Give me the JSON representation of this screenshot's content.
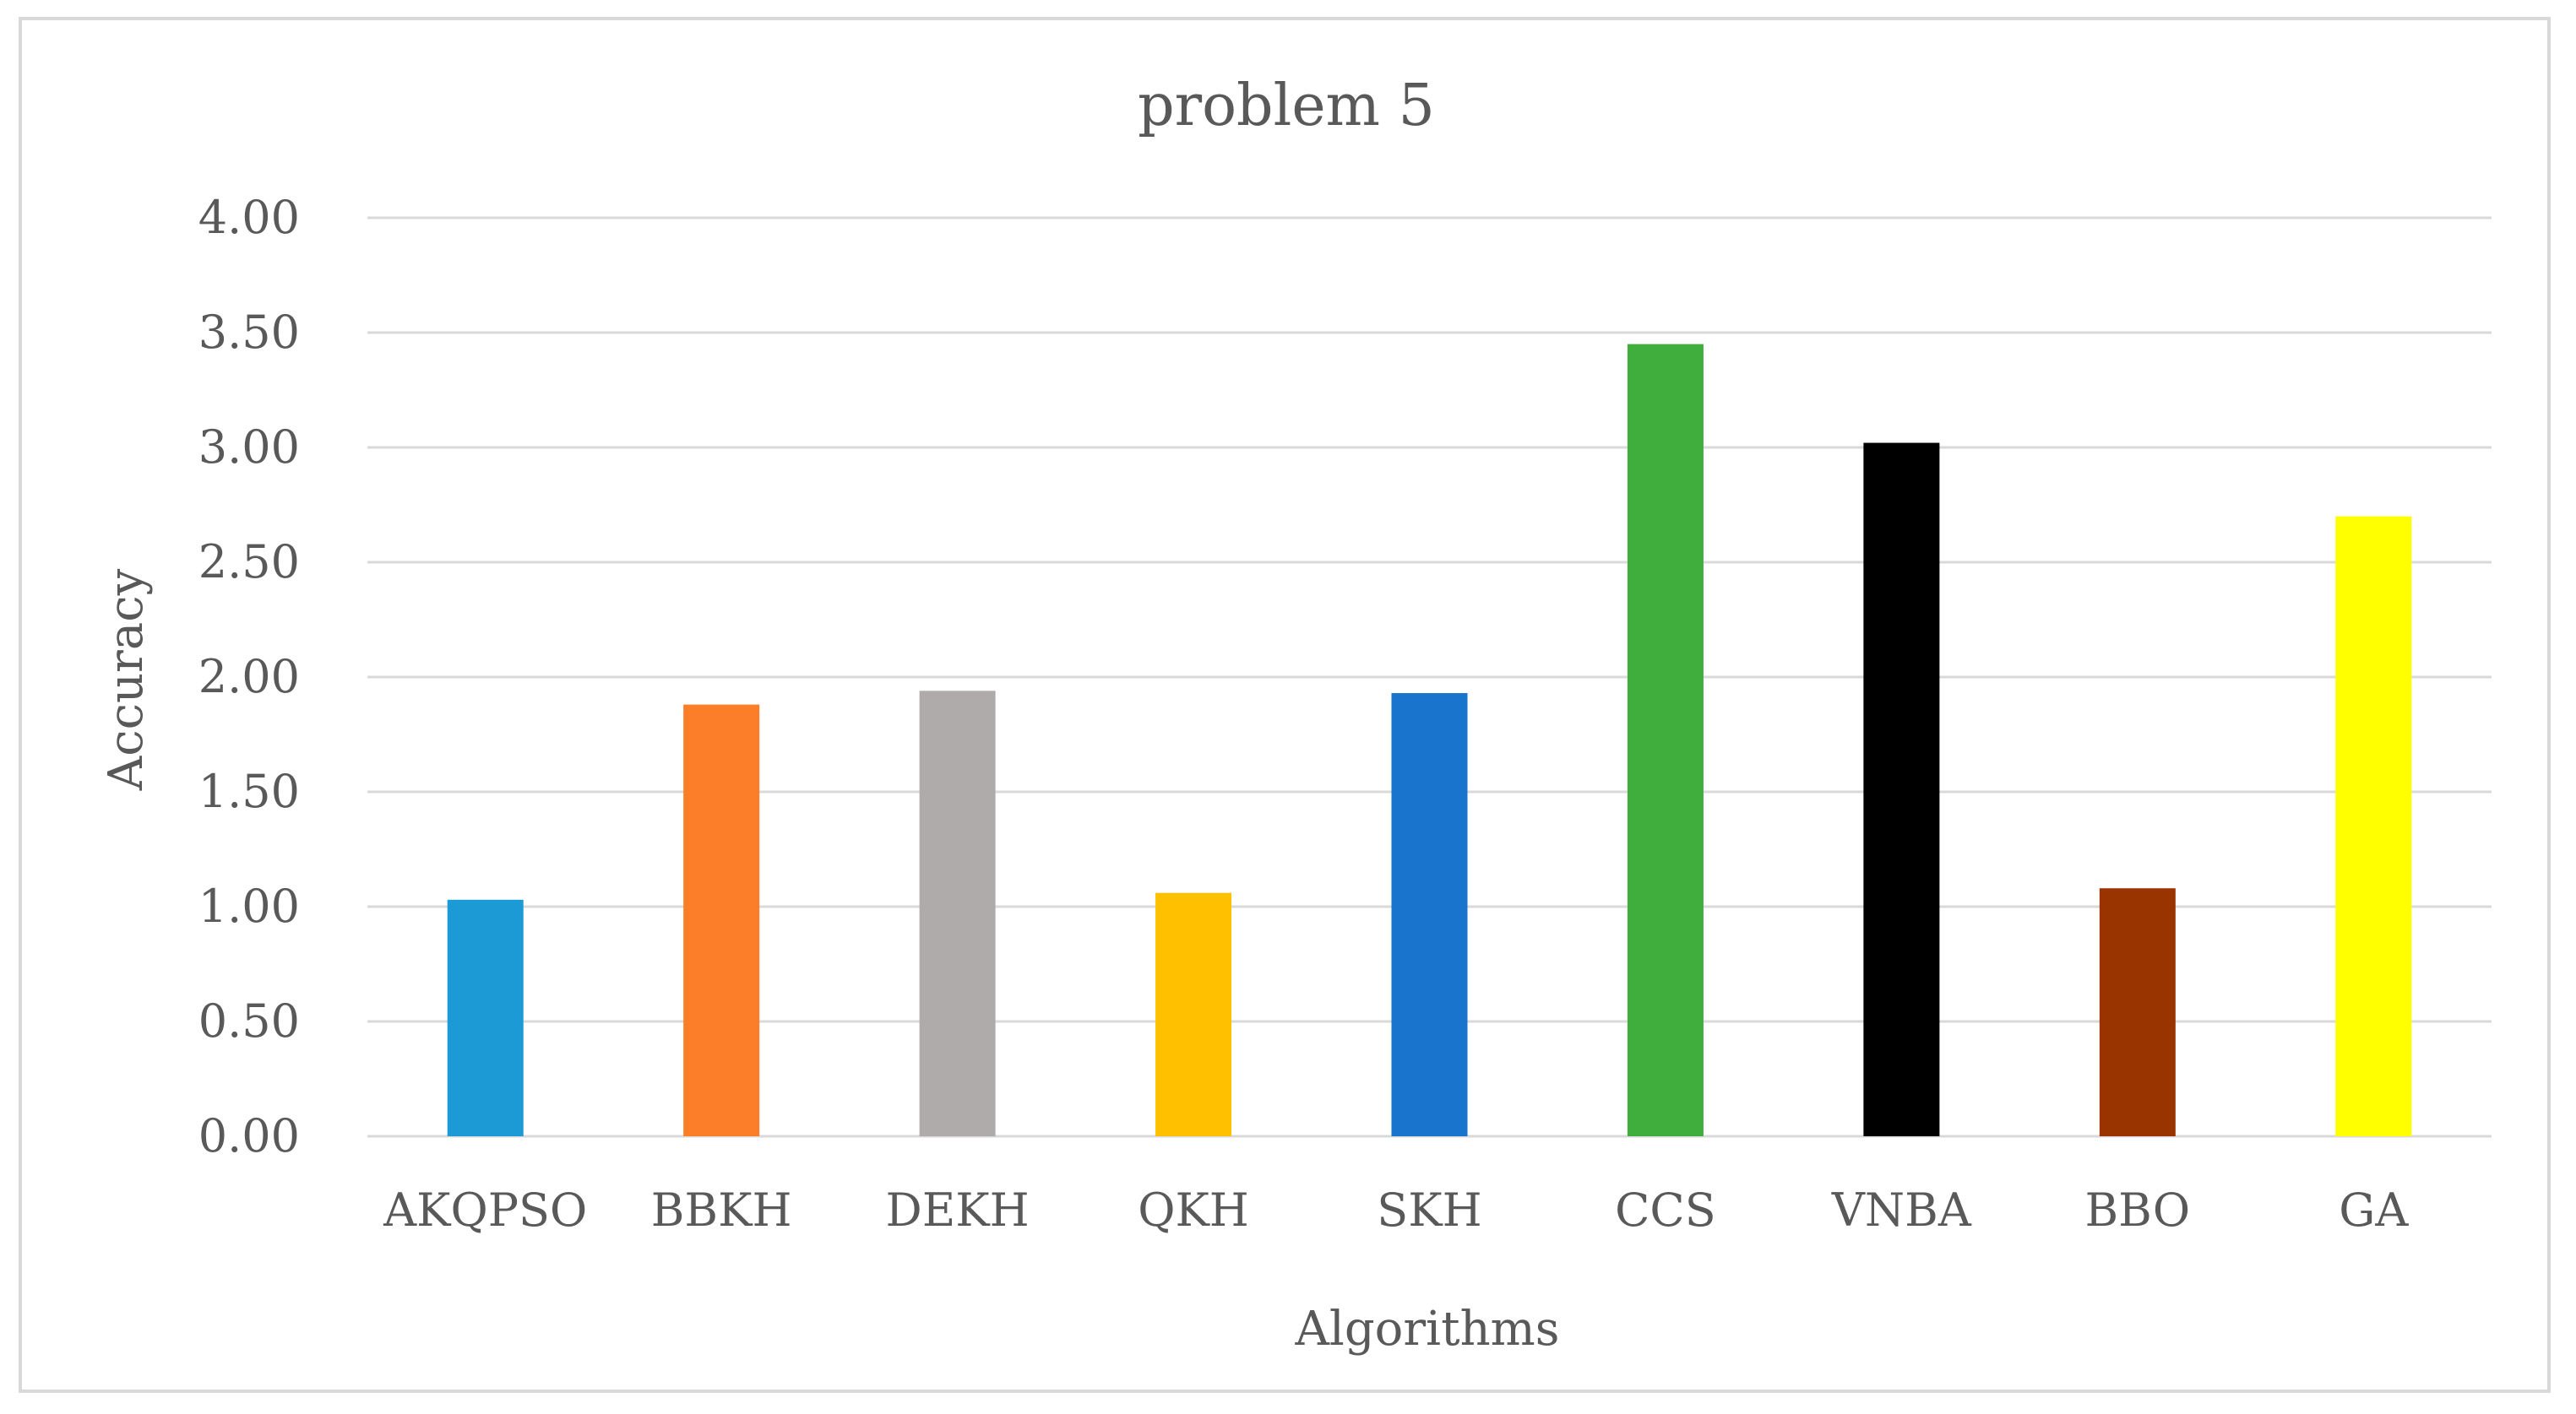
{
  "chart_data": {
    "type": "bar",
    "title": "problem 5",
    "xlabel": "Algorithms",
    "ylabel": "Accuracy",
    "ylim": [
      0,
      4
    ],
    "yticks": [
      "0.00",
      "0.50",
      "1.00",
      "1.50",
      "2.00",
      "2.50",
      "3.00",
      "3.50",
      "4.00"
    ],
    "categories": [
      "AKQPSO",
      "BBKH",
      "DEKH",
      "QKH",
      "SKH",
      "CCS",
      "VNBA",
      "BBO",
      "GA"
    ],
    "values": [
      1.03,
      1.88,
      1.94,
      1.06,
      1.93,
      3.45,
      3.02,
      1.08,
      2.7
    ],
    "colors": [
      "#1c9ad6",
      "#fd7e28",
      "#afabab",
      "#ffc000",
      "#1874cd",
      "#40ae3c",
      "#000000",
      "#993300",
      "#ffff00"
    ],
    "grid": true,
    "legend": "none"
  }
}
